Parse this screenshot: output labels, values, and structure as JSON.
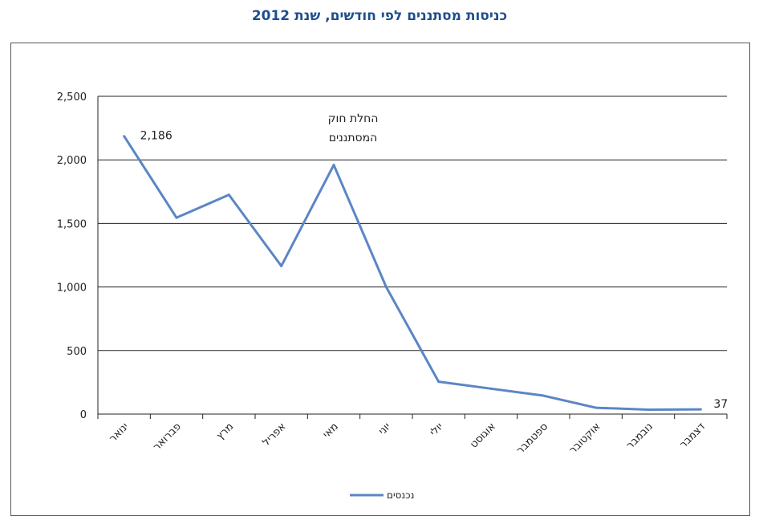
{
  "chart_data": {
    "type": "line",
    "title": "כניסות מסתננים לפי חודשים, שנת 2012",
    "categories": [
      "ינואר",
      "פברואר",
      "מרץ",
      "אפריל",
      "מאי",
      "יוני",
      "יולי",
      "אוגוסט",
      "ספטמבר",
      "אוקטובר",
      "נובמבר",
      "דצמבר"
    ],
    "series": [
      {
        "name": "נכנסים",
        "values": [
          2186,
          1545,
          1725,
          1165,
          1960,
          1000,
          255,
          200,
          145,
          50,
          35,
          37
        ],
        "color": "#5b86c5"
      }
    ],
    "y_ticks": [
      "0",
      "500",
      "1,000",
      "1,500",
      "2,000",
      "2,500"
    ],
    "ylim": [
      0,
      2500
    ],
    "grid": true,
    "legend": "bottom",
    "annotations": [
      {
        "text_lines": [
          "החלת חוק",
          "המסתננים"
        ],
        "category": "מאי"
      },
      {
        "text": "2,186",
        "category": "ינואר"
      },
      {
        "text": "37",
        "category": "דצמבר"
      }
    ]
  }
}
